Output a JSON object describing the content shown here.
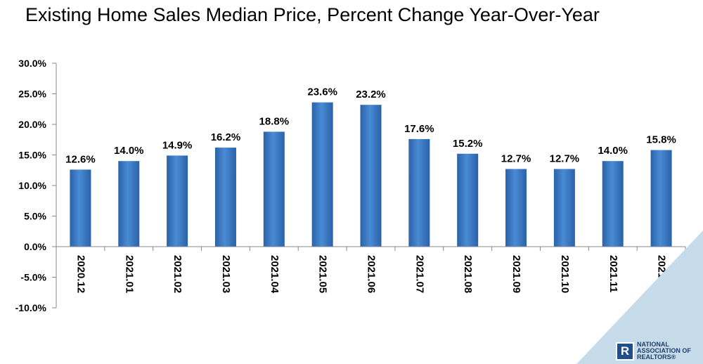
{
  "title": "Existing Home Sales Median Price, Percent Change Year-Over-Year",
  "logo": {
    "mark": "R",
    "lines": [
      "NATIONAL",
      "ASSOCIATION OF",
      "REALTORS®"
    ]
  },
  "colors": {
    "bar": "#2f6db8",
    "bar_light": "#4a8bd6",
    "corner": "#c7dcea"
  },
  "chart_data": {
    "type": "bar",
    "title": "Existing Home Sales Median Price, Percent Change Year-Over-Year",
    "xlabel": "",
    "ylabel": "",
    "categories": [
      "2020.12",
      "2021.01",
      "2021.02",
      "2021.03",
      "2021.04",
      "2021.05",
      "2021.06",
      "2021.07",
      "2021.08",
      "2021.09",
      "2021.10",
      "2021.11",
      "2021.12"
    ],
    "values": [
      12.6,
      14.0,
      14.9,
      16.2,
      18.8,
      23.6,
      23.2,
      17.6,
      15.2,
      12.7,
      12.7,
      14.0,
      15.8
    ],
    "data_labels": [
      "12.6%",
      "14.0%",
      "14.9%",
      "16.2%",
      "18.8%",
      "23.6%",
      "23.2%",
      "17.6%",
      "15.2%",
      "12.7%",
      "12.7%",
      "14.0%",
      "15.8%"
    ],
    "yticks": [
      30,
      25,
      20,
      15,
      10,
      5,
      0,
      -5,
      -10
    ],
    "ytick_labels": [
      "30.0%",
      "25.0%",
      "20.0%",
      "15.0%",
      "10.0%",
      "5.0%",
      "0.0%",
      "-5.0%",
      "-10.0%"
    ],
    "ylim": [
      -10,
      30
    ],
    "grid": false,
    "legend": "none"
  }
}
